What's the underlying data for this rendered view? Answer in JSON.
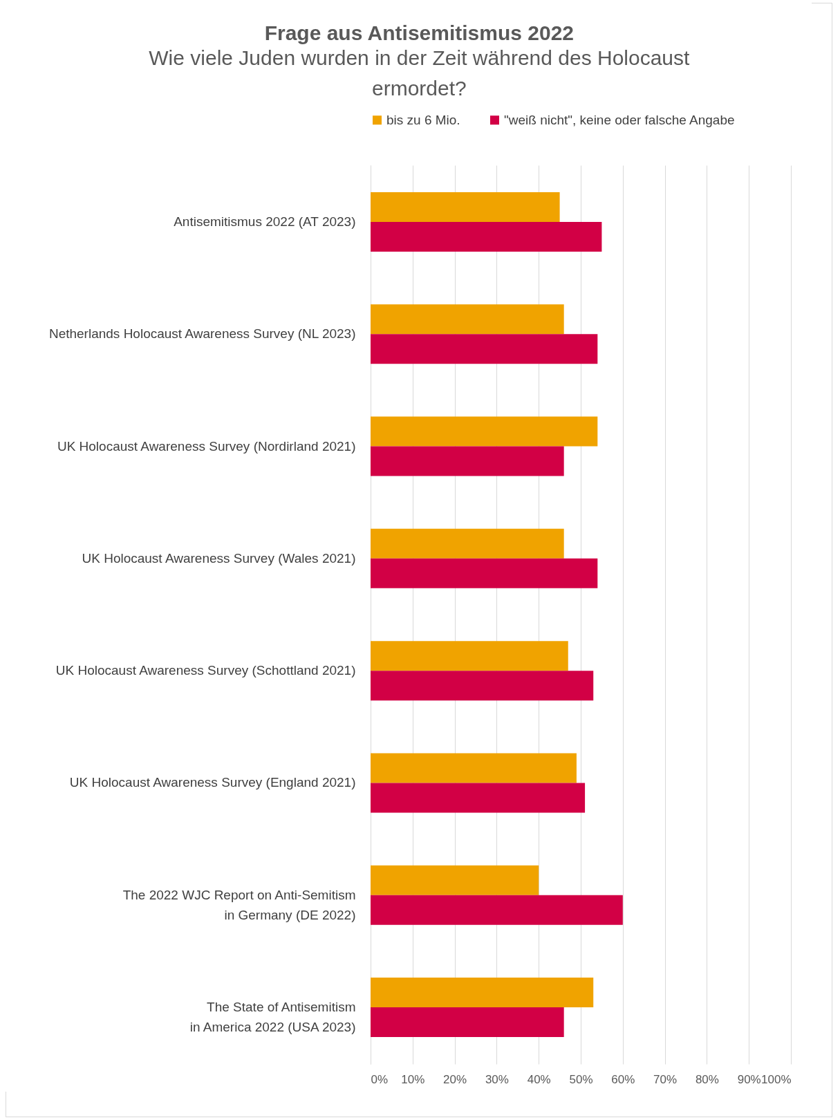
{
  "chart_data": {
    "type": "bar",
    "orientation": "horizontal",
    "title": "Frage aus Antisemitismus 2022",
    "subtitle": "Wie viele Juden wurden in der Zeit während des Holocaust ermordet?",
    "categories": [
      "Antisemitismus 2022 (AT 2023)",
      "Netherlands Holocaust Awareness Survey (NL 2023)",
      "UK Holocaust Awareness Survey (Nordirland 2021)",
      "UK Holocaust Awareness Survey (Wales 2021)",
      "UK Holocaust Awareness Survey (Schottland 2021)",
      "UK Holocaust Awareness Survey (England 2021)",
      "The 2022 WJC Report on Anti-Semitism\nin Germany (DE 2022)",
      "The State of Antisemitism\nin America 2022 (USA 2023)"
    ],
    "series": [
      {
        "name": "bis zu 6 Mio.",
        "color": "#f0a300",
        "values": [
          45,
          46,
          54,
          46,
          47,
          49,
          40,
          53
        ]
      },
      {
        "name": "\"weiß nicht\", keine oder falsche Angabe",
        "color": "#d20045",
        "values": [
          55,
          54,
          46,
          54,
          53,
          51,
          60,
          46
        ]
      }
    ],
    "xlim": [
      0,
      100
    ],
    "xticks": [
      {
        "value": 0,
        "label": "0%"
      },
      {
        "value": 10,
        "label": "10%"
      },
      {
        "value": 20,
        "label": "20%"
      },
      {
        "value": 30,
        "label": "30%"
      },
      {
        "value": 40,
        "label": "40%"
      },
      {
        "value": 50,
        "label": "50%"
      },
      {
        "value": 60,
        "label": "60%"
      },
      {
        "value": 70,
        "label": "70%"
      },
      {
        "value": 80,
        "label": "80%"
      },
      {
        "value": 90,
        "label": "90%"
      },
      {
        "value": 100,
        "label": "100%"
      }
    ],
    "grid": "x",
    "legend": "top"
  }
}
